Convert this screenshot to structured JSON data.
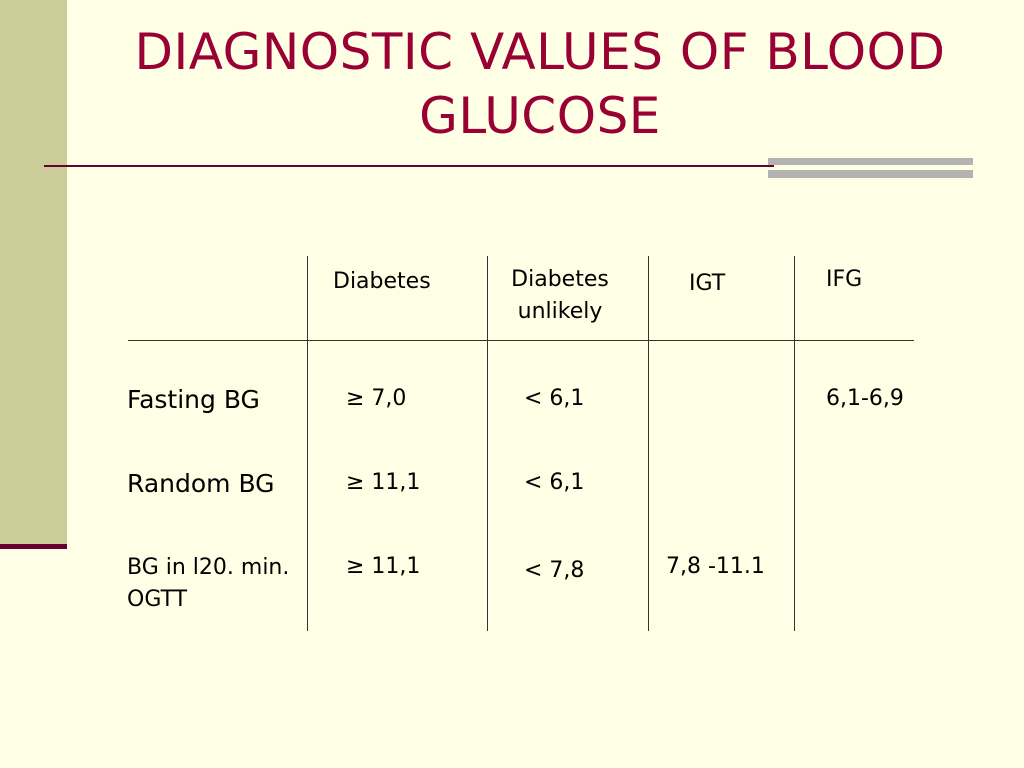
{
  "title": "DIAGNOSTIC VALUES OF BLOOD GLUCOSE",
  "table": {
    "headers": [
      "Diabetes",
      "Diabetes unlikely",
      "IGT",
      "IFG"
    ],
    "rows": [
      {
        "label": "Fasting BG",
        "values": [
          "≥ 7,0",
          "< 6,1",
          "",
          "6,1-6,9"
        ]
      },
      {
        "label": "Random BG",
        "values": [
          "≥ 11,1",
          "< 6,1",
          "",
          ""
        ]
      },
      {
        "label": "BG in l20. min. OGTT",
        "values": [
          "≥ 11,1",
          "< 7,8",
          "7,8 -11.1",
          ""
        ]
      }
    ]
  },
  "colors": {
    "title": "#990033",
    "background": "#ffffe5",
    "side_bar": "#cccc99",
    "rule": "#660033"
  }
}
